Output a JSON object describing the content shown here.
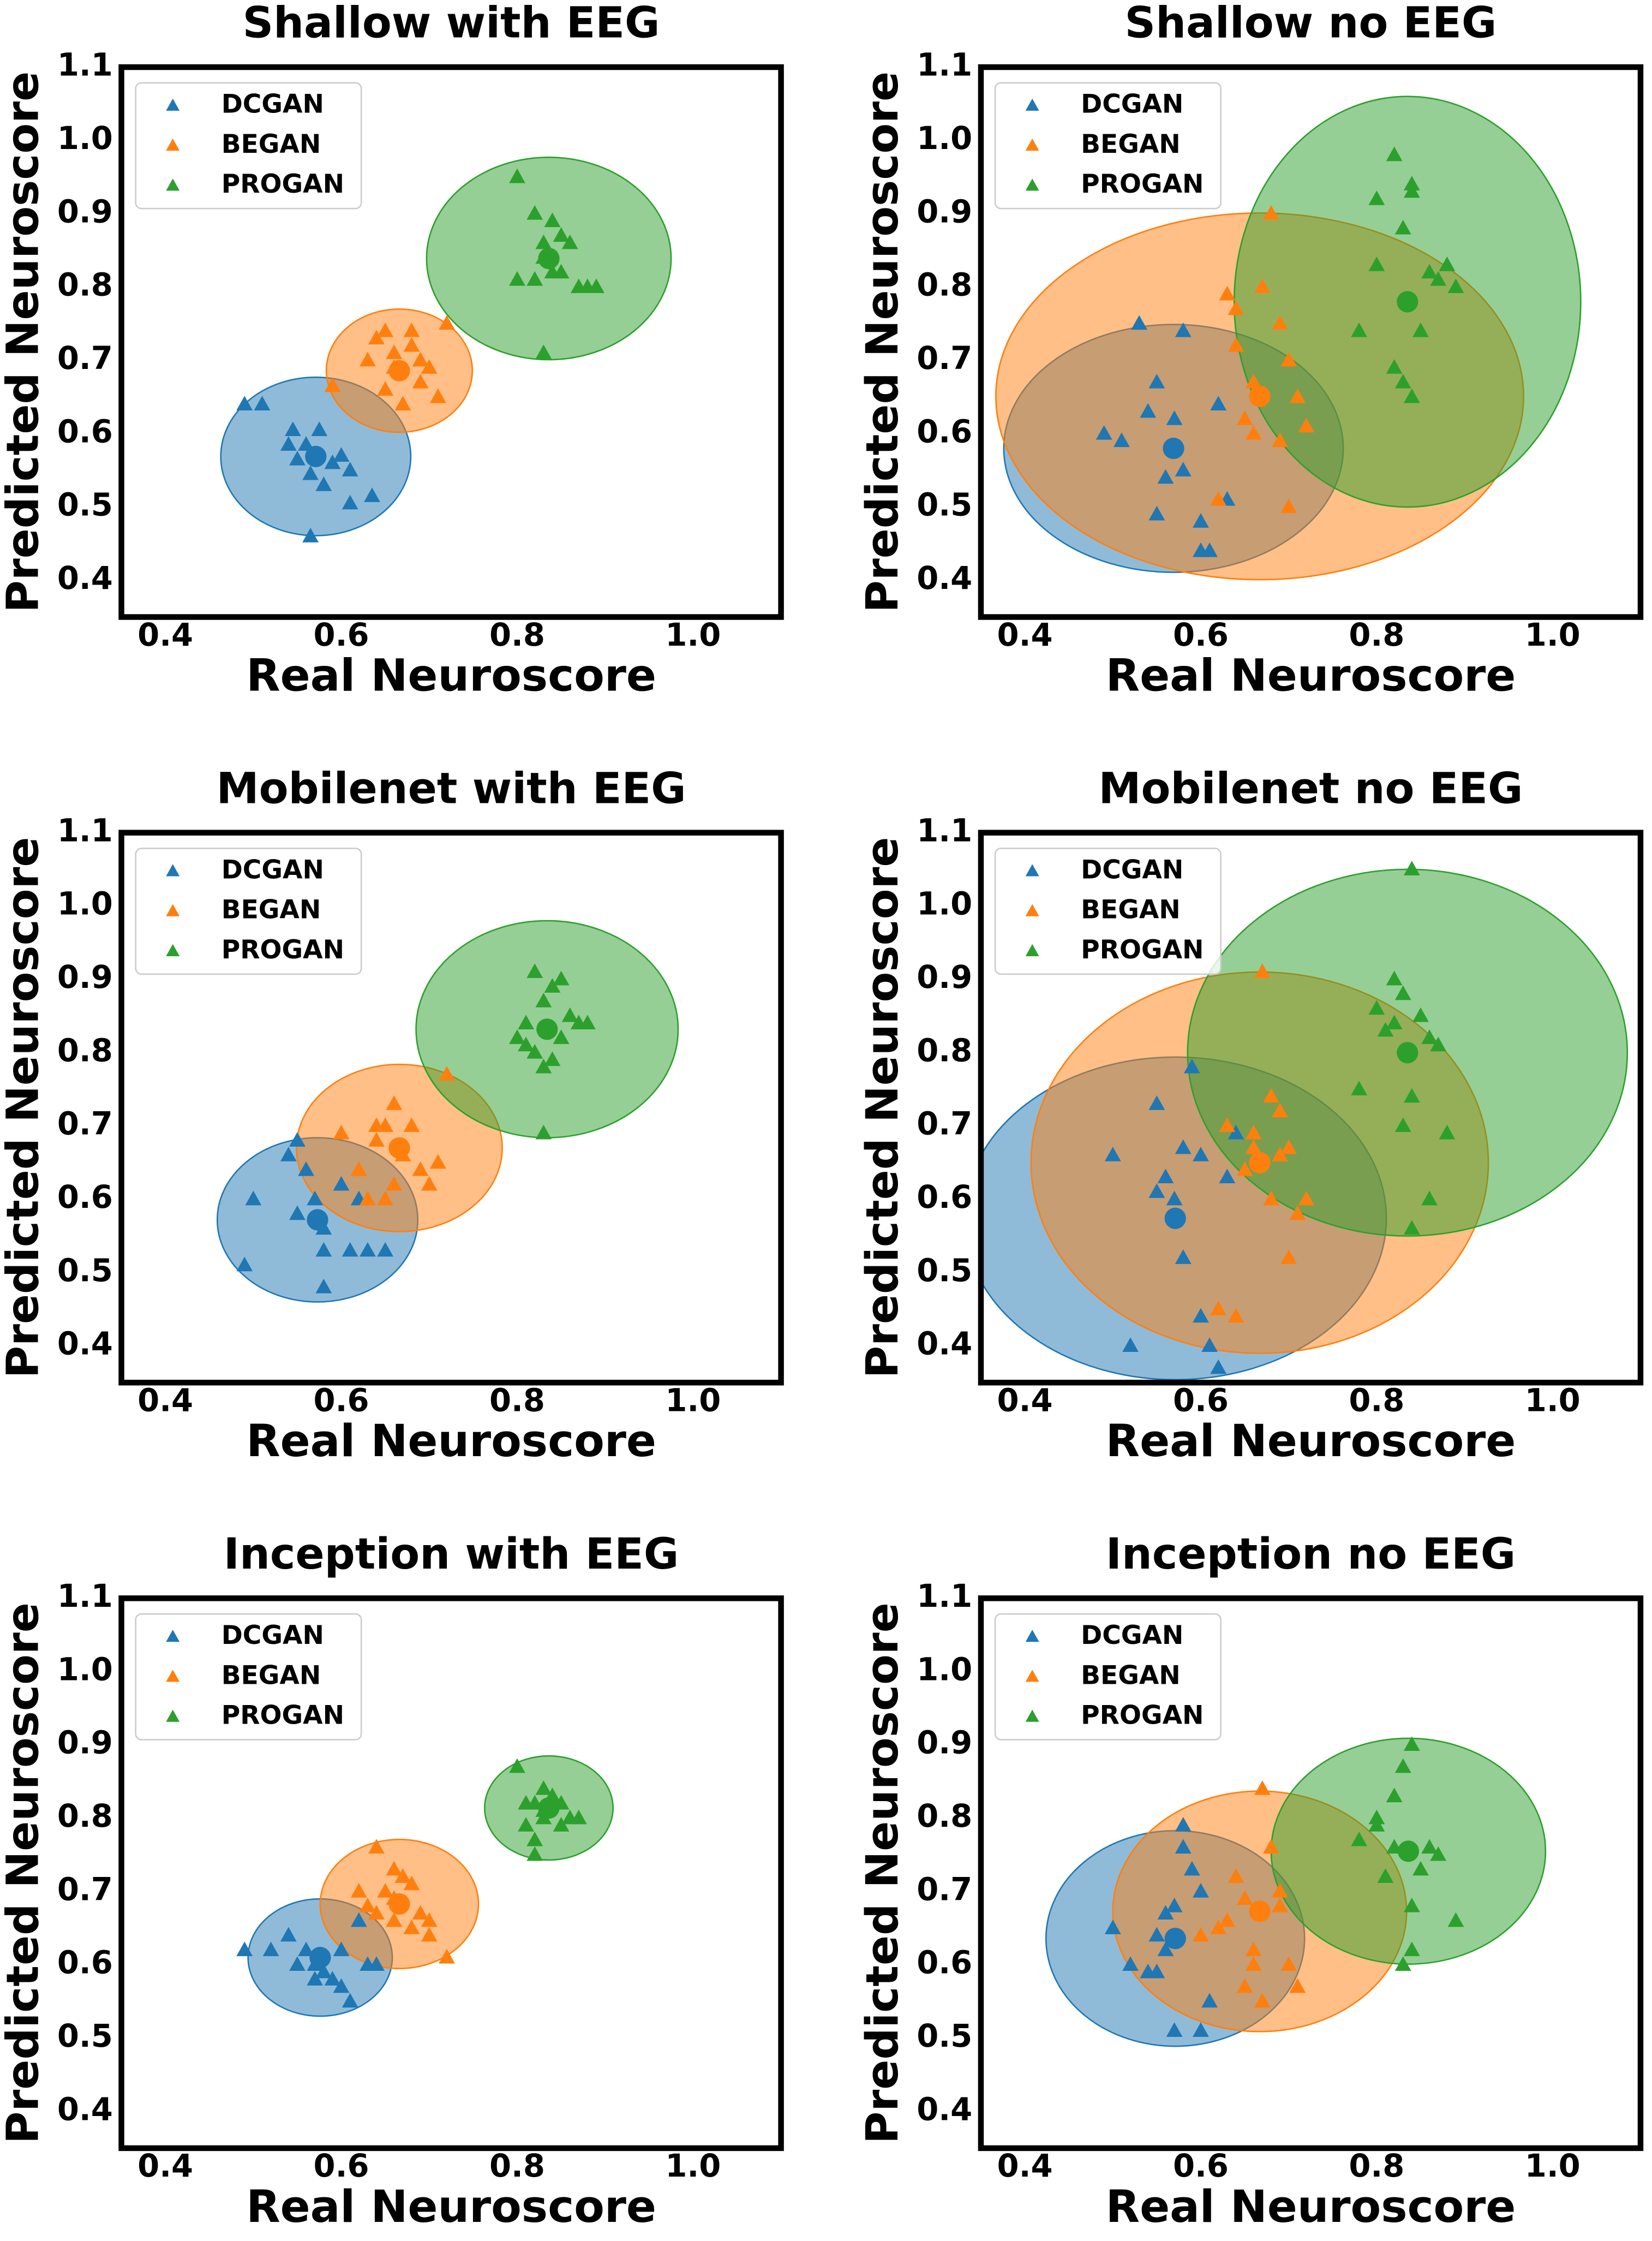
{
  "chart_data": [
    {
      "type": "scatter",
      "title": "Shallow with EEG",
      "xlabel": "Real Neuroscore",
      "ylabel": "Predicted Neuroscore",
      "xlim": [
        0.35,
        1.1
      ],
      "ylim": [
        0.35,
        1.1
      ],
      "xticks": [
        0.4,
        0.6,
        0.8,
        {
          "value": 1,
          "label": "1.0"
        }
      ],
      "yticks": [
        0.4,
        0.5,
        0.6,
        0.7,
        0.8,
        0.9,
        {
          "value": 1,
          "label": "1.0"
        },
        1.1
      ],
      "legend": "upper left",
      "series": [
        {
          "name": "DCGAN",
          "color": "#1f77b4",
          "x": [
            0.49,
            0.51,
            0.545,
            0.54,
            0.575,
            0.6,
            0.565,
            0.58,
            0.61,
            0.635,
            0.61,
            0.565,
            0.55,
            0.59,
            0.56
          ],
          "y": [
            0.64,
            0.64,
            0.605,
            0.585,
            0.605,
            0.57,
            0.545,
            0.53,
            0.55,
            0.515,
            0.505,
            0.46,
            0.565,
            0.56,
            0.585
          ],
          "mean_x": 0.571,
          "mean_y": 0.569,
          "std_x": 0.108,
          "std_y": 0.108
        },
        {
          "name": "BEGAN",
          "color": "#ff7f0e",
          "x": [
            0.59,
            0.63,
            0.64,
            0.65,
            0.66,
            0.68,
            0.69,
            0.7,
            0.72,
            0.65,
            0.67,
            0.69,
            0.71,
            0.66,
            0.68
          ],
          "y": [
            0.665,
            0.7,
            0.73,
            0.74,
            0.71,
            0.74,
            0.7,
            0.69,
            0.75,
            0.66,
            0.64,
            0.67,
            0.65,
            0.69,
            0.72
          ],
          "mean_x": 0.666,
          "mean_y": 0.686,
          "std_x": 0.083,
          "std_y": 0.084
        },
        {
          "name": "PROGAN",
          "color": "#2ca02c",
          "x": [
            0.8,
            0.82,
            0.83,
            0.84,
            0.85,
            0.86,
            0.83,
            0.8,
            0.82,
            0.84,
            0.87,
            0.88,
            0.89,
            0.83,
            0.85
          ],
          "y": [
            0.95,
            0.9,
            0.86,
            0.89,
            0.87,
            0.86,
            0.71,
            0.81,
            0.81,
            0.82,
            0.8,
            0.8,
            0.8,
            0.84,
            0.82
          ],
          "mean_x": 0.836,
          "mean_y": 0.839,
          "std_x": 0.139,
          "std_y": 0.138
        }
      ]
    },
    {
      "type": "scatter",
      "title": "Shallow no EEG",
      "xlabel": "Real Neuroscore",
      "ylabel": "Predicted Neuroscore",
      "xlim": [
        0.35,
        1.1
      ],
      "ylim": [
        0.35,
        1.1
      ],
      "xticks": [
        0.4,
        0.6,
        0.8,
        {
          "value": 1,
          "label": "1.0"
        }
      ],
      "yticks": [
        0.4,
        0.5,
        0.6,
        0.7,
        0.8,
        0.9,
        {
          "value": 1,
          "label": "1.0"
        },
        1.1
      ],
      "legend": "upper left",
      "series": [
        {
          "name": "DCGAN",
          "color": "#1f77b4",
          "x": [
            0.49,
            0.51,
            0.53,
            0.55,
            0.57,
            0.58,
            0.56,
            0.58,
            0.6,
            0.62,
            0.6,
            0.61,
            0.63,
            0.54,
            0.55
          ],
          "y": [
            0.6,
            0.59,
            0.75,
            0.67,
            0.62,
            0.74,
            0.54,
            0.55,
            0.44,
            0.64,
            0.48,
            0.44,
            0.51,
            0.63,
            0.49
          ],
          "mean_x": 0.569,
          "mean_y": 0.58,
          "std_x": 0.193,
          "std_y": 0.169
        },
        {
          "name": "BEGAN",
          "color": "#ff7f0e",
          "x": [
            0.63,
            0.64,
            0.66,
            0.68,
            0.69,
            0.7,
            0.72,
            0.65,
            0.67,
            0.71,
            0.62,
            0.64,
            0.69,
            0.66,
            0.7
          ],
          "y": [
            0.79,
            0.77,
            0.67,
            0.9,
            0.75,
            0.7,
            0.61,
            0.62,
            0.8,
            0.65,
            0.51,
            0.72,
            0.59,
            0.6,
            0.5
          ],
          "mean_x": 0.667,
          "mean_y": 0.651,
          "std_x": 0.3,
          "std_y": 0.25
        },
        {
          "name": "PROGAN",
          "color": "#2ca02c",
          "x": [
            0.78,
            0.8,
            0.82,
            0.84,
            0.83,
            0.85,
            0.86,
            0.87,
            0.88,
            0.89,
            0.82,
            0.83,
            0.84,
            0.8,
            0.84
          ],
          "y": [
            0.74,
            0.83,
            0.98,
            0.93,
            0.88,
            0.74,
            0.82,
            0.81,
            0.83,
            0.8,
            0.69,
            0.67,
            0.65,
            0.92,
            0.94
          ],
          "mean_x": 0.835,
          "mean_y": 0.78,
          "std_x": 0.197,
          "std_y": 0.28
        }
      ]
    },
    {
      "type": "scatter",
      "title": "Mobilenet with EEG",
      "xlabel": "Real Neuroscore",
      "ylabel": "Predicted Neuroscore",
      "xlim": [
        0.35,
        1.1
      ],
      "ylim": [
        0.35,
        1.1
      ],
      "xticks": [
        0.4,
        0.6,
        0.8,
        {
          "value": 1,
          "label": "1.0"
        }
      ],
      "yticks": [
        0.4,
        0.5,
        0.6,
        0.7,
        0.8,
        0.9,
        {
          "value": 1,
          "label": "1.0"
        },
        1.1
      ],
      "legend": "upper left",
      "series": [
        {
          "name": "DCGAN",
          "color": "#1f77b4",
          "x": [
            0.49,
            0.5,
            0.55,
            0.56,
            0.57,
            0.58,
            0.6,
            0.62,
            0.55,
            0.58,
            0.61,
            0.63,
            0.65,
            0.58,
            0.54
          ],
          "y": [
            0.51,
            0.6,
            0.68,
            0.64,
            0.6,
            0.56,
            0.62,
            0.6,
            0.58,
            0.53,
            0.53,
            0.53,
            0.53,
            0.48,
            0.66
          ],
          "mean_x": 0.573,
          "mean_y": 0.572,
          "std_x": 0.114,
          "std_y": 0.112
        },
        {
          "name": "BEGAN",
          "color": "#ff7f0e",
          "x": [
            0.6,
            0.62,
            0.64,
            0.65,
            0.66,
            0.68,
            0.7,
            0.72,
            0.63,
            0.65,
            0.67,
            0.69,
            0.71,
            0.64,
            0.66
          ],
          "y": [
            0.69,
            0.64,
            0.68,
            0.7,
            0.73,
            0.7,
            0.62,
            0.77,
            0.6,
            0.6,
            0.66,
            0.64,
            0.65,
            0.7,
            0.62
          ],
          "mean_x": 0.666,
          "mean_y": 0.67,
          "std_x": 0.117,
          "std_y": 0.114
        },
        {
          "name": "PROGAN",
          "color": "#2ca02c",
          "x": [
            0.8,
            0.81,
            0.82,
            0.83,
            0.84,
            0.85,
            0.86,
            0.87,
            0.83,
            0.84,
            0.82,
            0.81,
            0.83,
            0.88,
            0.85
          ],
          "y": [
            0.82,
            0.84,
            0.91,
            0.87,
            0.89,
            0.9,
            0.85,
            0.84,
            0.69,
            0.79,
            0.8,
            0.81,
            0.78,
            0.84,
            0.82
          ],
          "mean_x": 0.834,
          "mean_y": 0.832,
          "std_x": 0.149,
          "std_y": 0.148
        }
      ]
    },
    {
      "type": "scatter",
      "title": "Mobilenet no EEG",
      "xlabel": "Real Neuroscore",
      "ylabel": "Predicted Neuroscore",
      "xlim": [
        0.35,
        1.1
      ],
      "ylim": [
        0.35,
        1.1
      ],
      "xticks": [
        0.4,
        0.6,
        0.8,
        {
          "value": 1,
          "label": "1.0"
        }
      ],
      "yticks": [
        0.4,
        0.5,
        0.6,
        0.7,
        0.8,
        0.9,
        {
          "value": 1,
          "label": "1.0"
        },
        1.1
      ],
      "legend": "upper left",
      "series": [
        {
          "name": "DCGAN",
          "color": "#1f77b4",
          "x": [
            0.5,
            0.52,
            0.55,
            0.56,
            0.57,
            0.58,
            0.59,
            0.6,
            0.61,
            0.62,
            0.63,
            0.58,
            0.55,
            0.6,
            0.64
          ],
          "y": [
            0.66,
            0.4,
            0.73,
            0.63,
            0.6,
            0.67,
            0.78,
            0.44,
            0.4,
            0.37,
            0.63,
            0.52,
            0.61,
            0.66,
            0.69
          ],
          "mean_x": 0.571,
          "mean_y": 0.574,
          "std_x": 0.24,
          "std_y": 0.22
        },
        {
          "name": "BEGAN",
          "color": "#ff7f0e",
          "x": [
            0.63,
            0.65,
            0.66,
            0.67,
            0.68,
            0.69,
            0.7,
            0.71,
            0.72,
            0.64,
            0.66,
            0.68,
            0.7,
            0.62,
            0.69
          ],
          "y": [
            0.7,
            0.64,
            0.69,
            0.91,
            0.74,
            0.66,
            0.67,
            0.58,
            0.6,
            0.44,
            0.67,
            0.6,
            0.52,
            0.45,
            0.72
          ],
          "mean_x": 0.667,
          "mean_y": 0.65,
          "std_x": 0.26,
          "std_y": 0.26
        },
        {
          "name": "PROGAN",
          "color": "#2ca02c",
          "x": [
            0.78,
            0.8,
            0.81,
            0.82,
            0.83,
            0.84,
            0.85,
            0.86,
            0.87,
            0.88,
            0.82,
            0.83,
            0.84,
            0.84,
            0.86
          ],
          "y": [
            0.75,
            0.86,
            0.83,
            0.9,
            0.88,
            1.05,
            0.85,
            0.82,
            0.81,
            0.69,
            0.84,
            0.7,
            0.74,
            0.56,
            0.6
          ],
          "mean_x": 0.835,
          "mean_y": 0.8,
          "std_x": 0.25,
          "std_y": 0.25
        }
      ]
    },
    {
      "type": "scatter",
      "title": "Inception with EEG",
      "xlabel": "Real Neuroscore",
      "ylabel": "Predicted Neuroscore",
      "xlim": [
        0.35,
        1.1
      ],
      "ylim": [
        0.35,
        1.1
      ],
      "xticks": [
        0.4,
        0.6,
        0.8,
        {
          "value": 1,
          "label": "1.0"
        }
      ],
      "yticks": [
        0.4,
        0.5,
        0.6,
        0.7,
        0.8,
        0.9,
        {
          "value": 1,
          "label": "1.0"
        },
        1.1
      ],
      "legend": "upper left",
      "series": [
        {
          "name": "DCGAN",
          "color": "#1f77b4",
          "x": [
            0.49,
            0.52,
            0.54,
            0.56,
            0.57,
            0.58,
            0.59,
            0.6,
            0.61,
            0.63,
            0.55,
            0.57,
            0.6,
            0.62,
            0.64
          ],
          "y": [
            0.62,
            0.62,
            0.64,
            0.62,
            0.6,
            0.59,
            0.58,
            0.57,
            0.55,
            0.6,
            0.6,
            0.58,
            0.62,
            0.66,
            0.6
          ],
          "mean_x": 0.576,
          "mean_y": 0.61,
          "std_x": 0.082,
          "std_y": 0.08
        },
        {
          "name": "BEGAN",
          "color": "#ff7f0e",
          "x": [
            0.62,
            0.64,
            0.65,
            0.66,
            0.67,
            0.68,
            0.69,
            0.7,
            0.72,
            0.63,
            0.66,
            0.68,
            0.7,
            0.64,
            0.66
          ],
          "y": [
            0.7,
            0.76,
            0.7,
            0.69,
            0.72,
            0.71,
            0.67,
            0.66,
            0.61,
            0.68,
            0.66,
            0.65,
            0.64,
            0.67,
            0.73
          ],
          "mean_x": 0.666,
          "mean_y": 0.683,
          "std_x": 0.09,
          "std_y": 0.088
        },
        {
          "name": "PROGAN",
          "color": "#2ca02c",
          "x": [
            0.8,
            0.81,
            0.82,
            0.83,
            0.84,
            0.85,
            0.86,
            0.87,
            0.82,
            0.83,
            0.84,
            0.82,
            0.85,
            0.81,
            0.83
          ],
          "y": [
            0.87,
            0.79,
            0.82,
            0.84,
            0.83,
            0.82,
            0.8,
            0.8,
            0.77,
            0.81,
            0.83,
            0.75,
            0.79,
            0.82,
            0.8
          ],
          "mean_x": 0.836,
          "mean_y": 0.814,
          "std_x": 0.073,
          "std_y": 0.071
        }
      ]
    },
    {
      "type": "scatter",
      "title": "Inception no EEG",
      "xlabel": "Real Neuroscore",
      "ylabel": "Predicted Neuroscore",
      "xlim": [
        0.35,
        1.1
      ],
      "ylim": [
        0.35,
        1.1
      ],
      "xticks": [
        0.4,
        0.6,
        0.8,
        {
          "value": 1,
          "label": "1.0"
        }
      ],
      "yticks": [
        0.4,
        0.5,
        0.6,
        0.7,
        0.8,
        0.9,
        {
          "value": 1,
          "label": "1.0"
        },
        1.1
      ],
      "legend": "upper left",
      "series": [
        {
          "name": "DCGAN",
          "color": "#1f77b4",
          "x": [
            0.5,
            0.52,
            0.54,
            0.55,
            0.56,
            0.57,
            0.58,
            0.59,
            0.6,
            0.61,
            0.55,
            0.57,
            0.6,
            0.58,
            0.56
          ],
          "y": [
            0.65,
            0.6,
            0.59,
            0.64,
            0.67,
            0.68,
            0.79,
            0.73,
            0.7,
            0.55,
            0.59,
            0.51,
            0.51,
            0.76,
            0.62
          ],
          "mean_x": 0.571,
          "mean_y": 0.636,
          "std_x": 0.147,
          "std_y": 0.147
        },
        {
          "name": "BEGAN",
          "color": "#ff7f0e",
          "x": [
            0.6,
            0.62,
            0.64,
            0.65,
            0.66,
            0.67,
            0.68,
            0.69,
            0.7,
            0.71,
            0.63,
            0.65,
            0.67,
            0.69,
            0.66
          ],
          "y": [
            0.64,
            0.65,
            0.72,
            0.69,
            0.6,
            0.84,
            0.76,
            0.68,
            0.6,
            0.57,
            0.66,
            0.57,
            0.55,
            0.7,
            0.62
          ],
          "mean_x": 0.667,
          "mean_y": 0.673,
          "std_x": 0.167,
          "std_y": 0.164
        },
        {
          "name": "PROGAN",
          "color": "#2ca02c",
          "x": [
            0.78,
            0.8,
            0.81,
            0.82,
            0.83,
            0.84,
            0.85,
            0.86,
            0.87,
            0.89,
            0.82,
            0.84,
            0.83,
            0.84,
            0.8
          ],
          "y": [
            0.77,
            0.8,
            0.72,
            0.76,
            0.87,
            0.9,
            0.73,
            0.76,
            0.75,
            0.66,
            0.83,
            0.62,
            0.6,
            0.68,
            0.79
          ],
          "mean_x": 0.836,
          "mean_y": 0.755,
          "std_x": 0.156,
          "std_y": 0.154
        }
      ]
    }
  ]
}
